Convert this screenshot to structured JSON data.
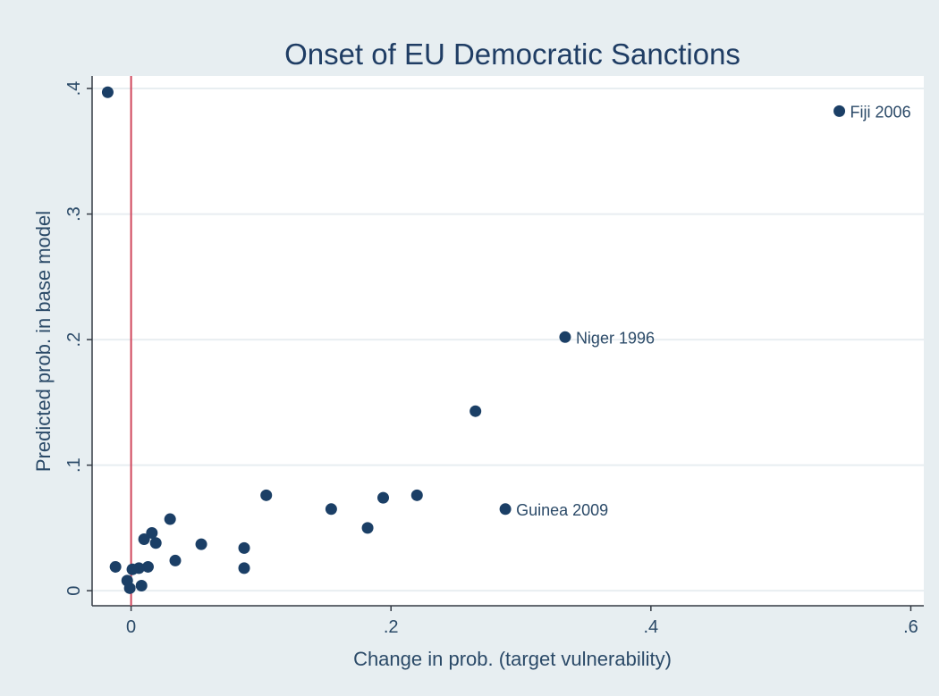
{
  "chart_data": {
    "type": "scatter",
    "title": "Onset of EU Democratic Sanctions",
    "xlabel": "Change in prob. (target vulnerability)",
    "ylabel": "Predicted prob. in base model",
    "xlim": [
      -0.03,
      0.61
    ],
    "ylim": [
      -0.012,
      0.41
    ],
    "x_ticks": [
      0,
      0.2,
      0.4,
      0.6
    ],
    "x_tick_labels": [
      "0",
      ".2",
      ".4",
      ".6"
    ],
    "y_ticks": [
      0,
      0.1,
      0.2,
      0.3,
      0.4
    ],
    "y_tick_labels": [
      "0",
      ".1",
      ".2",
      ".3",
      ".4"
    ],
    "grid": "horizontal",
    "reference_line": {
      "x": 0,
      "color": "#d0455b"
    },
    "colors": {
      "background": "#e7eef1",
      "plot_background": "#ffffff",
      "marker": "#1b3f66",
      "grid": "#e8eef1",
      "text": "#2b4a68",
      "title": "#1f3d64"
    },
    "points": [
      {
        "x": -0.018,
        "y": 0.397
      },
      {
        "x": 0.545,
        "y": 0.382,
        "label": "Fiji 2006"
      },
      {
        "x": 0.334,
        "y": 0.202,
        "label": "Niger 1996"
      },
      {
        "x": 0.265,
        "y": 0.143
      },
      {
        "x": 0.288,
        "y": 0.065,
        "label": "Guinea 2009"
      },
      {
        "x": 0.22,
        "y": 0.076
      },
      {
        "x": 0.194,
        "y": 0.074
      },
      {
        "x": 0.182,
        "y": 0.05
      },
      {
        "x": 0.154,
        "y": 0.065
      },
      {
        "x": 0.104,
        "y": 0.076
      },
      {
        "x": 0.087,
        "y": 0.034
      },
      {
        "x": 0.087,
        "y": 0.018
      },
      {
        "x": 0.054,
        "y": 0.037
      },
      {
        "x": 0.034,
        "y": 0.024
      },
      {
        "x": 0.03,
        "y": 0.057
      },
      {
        "x": 0.019,
        "y": 0.038
      },
      {
        "x": 0.016,
        "y": 0.046
      },
      {
        "x": 0.01,
        "y": 0.041
      },
      {
        "x": 0.013,
        "y": 0.019
      },
      {
        "x": 0.006,
        "y": 0.018
      },
      {
        "x": 0.001,
        "y": 0.017
      },
      {
        "x": -0.012,
        "y": 0.019
      },
      {
        "x": -0.003,
        "y": 0.008
      },
      {
        "x": -0.001,
        "y": 0.002
      },
      {
        "x": 0.008,
        "y": 0.004
      }
    ]
  }
}
